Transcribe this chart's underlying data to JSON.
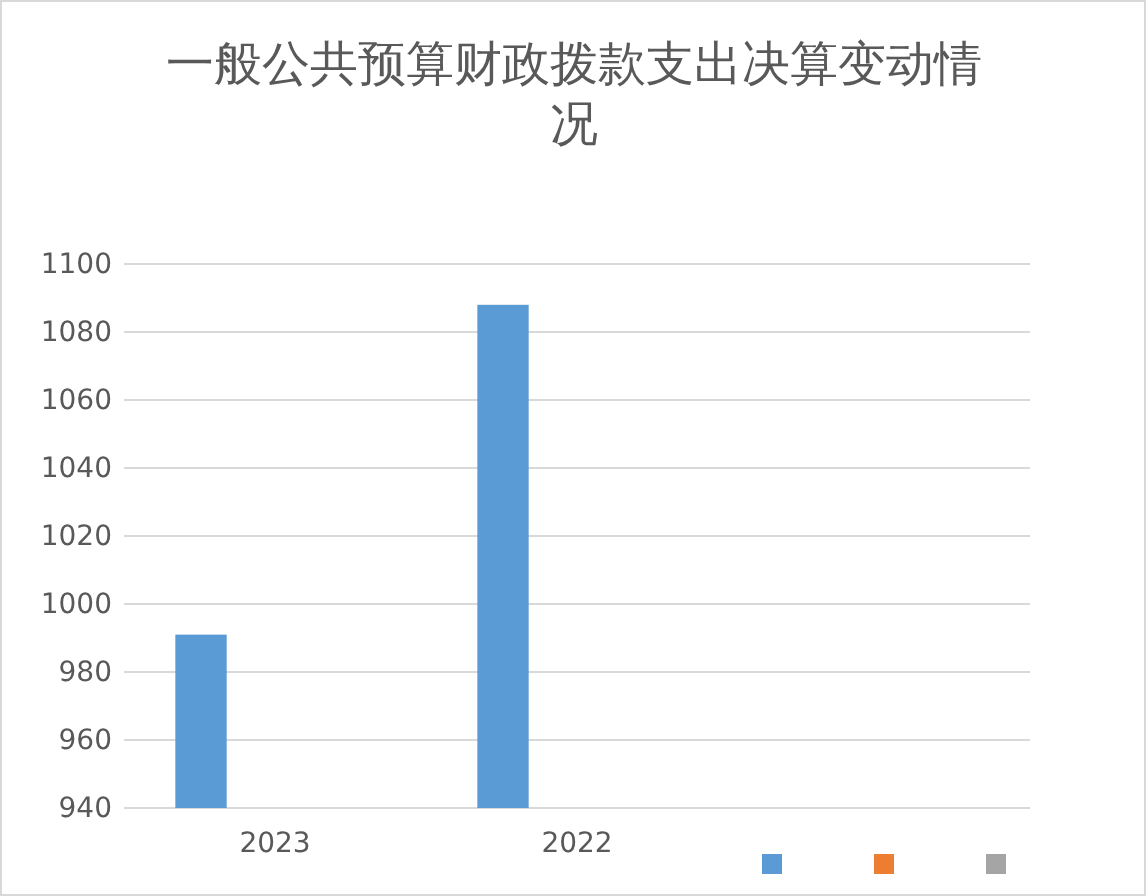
{
  "chart_data": {
    "type": "bar",
    "title": "一般公共预算财政拨款支出决算变动情况",
    "categories": [
      "2023",
      "2022",
      null
    ],
    "series": [
      {
        "color": "#5b9bd5",
        "values": [
          991,
          1088,
          null
        ]
      },
      {
        "color": "#ed7d31",
        "values": [
          null,
          null,
          null
        ]
      },
      {
        "color": "#a5a5a5",
        "values": [
          null,
          null,
          null
        ]
      }
    ],
    "ylim": [
      940,
      1100
    ],
    "yticks": [
      940,
      960,
      980,
      1000,
      1020,
      1040,
      1060,
      1080,
      1100
    ],
    "grid": "y"
  }
}
